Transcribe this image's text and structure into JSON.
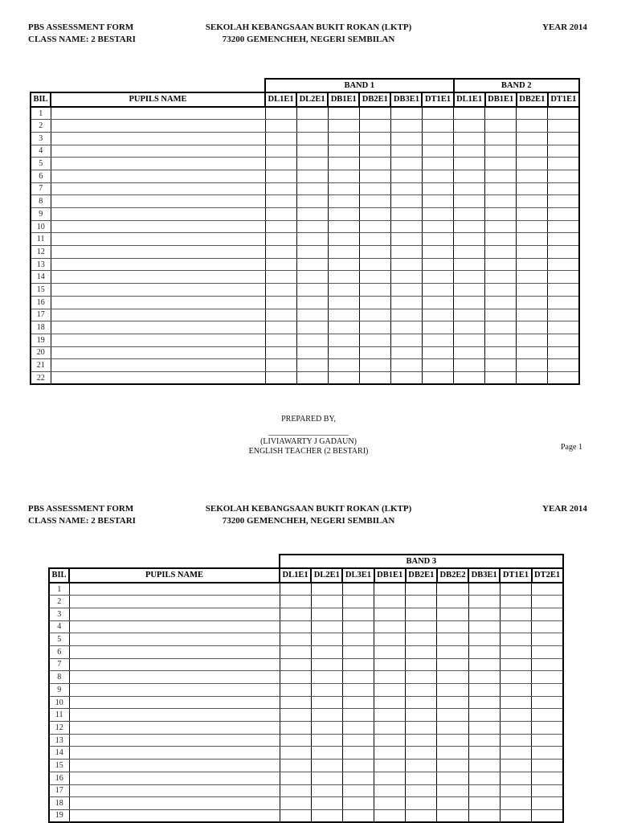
{
  "page1": {
    "header": {
      "left_line1": "PBS ASSESSMENT FORM",
      "left_line2": "CLASS NAME: 2 BESTARI",
      "center_line1": "SEKOLAH KEBANGSAAN BUKIT ROKAN (LKTP)",
      "center_line2": "73200 GEMENCHEH, NEGERI SEMBILAN",
      "right": "YEAR 2014"
    },
    "table": {
      "bil_header": "BIL",
      "name_header": "PUPILS NAME",
      "bands": [
        {
          "label": "BAND 1",
          "columns": [
            "DL1E1",
            "DL2E1",
            "DB1E1",
            "DB2E1",
            "DB3E1",
            "DT1E1"
          ]
        },
        {
          "label": "BAND 2",
          "columns": [
            "DL1E1",
            "DB1E1",
            "DB2E1",
            "DT1E1"
          ]
        }
      ],
      "rows": [
        "1",
        "2",
        "3",
        "4",
        "5",
        "6",
        "7",
        "8",
        "9",
        "10",
        "11",
        "12",
        "13",
        "14",
        "15",
        "16",
        "17",
        "18",
        "19",
        "20",
        "21",
        "22"
      ]
    },
    "footer": {
      "prepared_by": "PREPARED BY,",
      "signature_line": "____________________",
      "teacher_name": "(LIVIAWARTY J GADAUN)",
      "teacher_title": "ENGLISH TEACHER (2 BESTARI)",
      "page_label": "Page 1"
    }
  },
  "page2": {
    "header": {
      "left_line1": "PBS ASSESSMENT FORM",
      "left_line2": "CLASS NAME: 2 BESTARI",
      "center_line1": "SEKOLAH KEBANGSAAN BUKIT ROKAN (LKTP)",
      "center_line2": "73200 GEMENCHEH, NEGERI SEMBILAN",
      "right": "YEAR 2014"
    },
    "table": {
      "bil_header": "BIL",
      "name_header": "PUPILS NAME",
      "bands": [
        {
          "label": "BAND 3",
          "columns": [
            "DL1E1",
            "DL2E1",
            "DL3E1",
            "DB1E1",
            "DB2E1",
            "DB2E2",
            "DB3E1",
            "DT1E1",
            "DT2E1"
          ]
        }
      ],
      "rows": [
        "1",
        "2",
        "3",
        "4",
        "5",
        "6",
        "7",
        "8",
        "9",
        "10",
        "11",
        "12",
        "13",
        "14",
        "15",
        "16",
        "17",
        "18",
        "19"
      ]
    }
  },
  "colors": {
    "page_background": "#ffffff",
    "text": "#111111",
    "grid_line": "#000000"
  }
}
